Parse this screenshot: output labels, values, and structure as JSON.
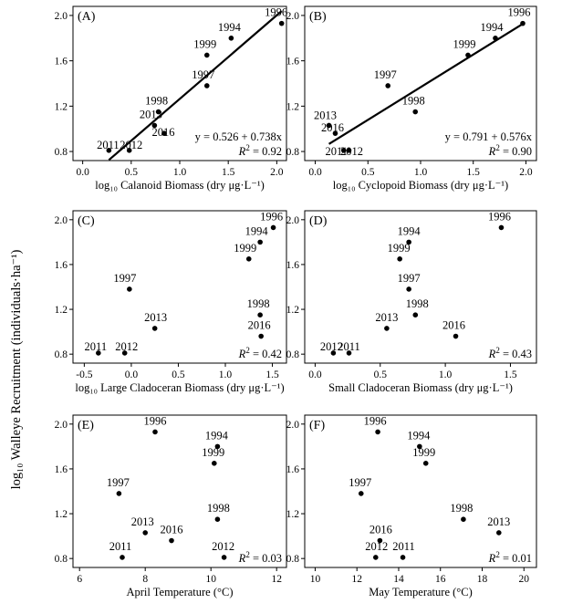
{
  "y_axis_label": "log₁₀ Walleye Recruitment (individuals·ha⁻¹)",
  "chart_data": [
    {
      "type": "scatter",
      "panel": "(A)",
      "xlabel": "log₁₀ Calanoid Biomass (dry μg·L⁻¹)",
      "ylabel": "log₁₀ Walleye Recruitment (individuals·ha⁻¹)",
      "xlim": [
        -0.1,
        2.1
      ],
      "ylim": [
        0.72,
        2.08
      ],
      "xticks": [
        0.0,
        0.5,
        1.0,
        1.5,
        2.0
      ],
      "xtick_labels": [
        "0.0",
        "0.5",
        "1.0",
        "1.5",
        "2.0"
      ],
      "yticks": [
        0.8,
        1.2,
        1.6,
        2.0
      ],
      "ytick_labels": [
        "0.8",
        "1.2",
        "1.6",
        "2.0"
      ],
      "points": [
        {
          "label": "1994",
          "x": 1.53,
          "y": 1.8
        },
        {
          "label": "1996",
          "x": 2.05,
          "y": 1.93
        },
        {
          "label": "1997",
          "x": 1.28,
          "y": 1.38
        },
        {
          "label": "1998",
          "x": 0.78,
          "y": 1.15
        },
        {
          "label": "1999",
          "x": 1.28,
          "y": 1.65
        },
        {
          "label": "2011",
          "x": 0.27,
          "y": 0.81
        },
        {
          "label": "2012",
          "x": 0.48,
          "y": 0.81
        },
        {
          "label": "2013",
          "x": 0.74,
          "y": 1.03
        },
        {
          "label": "2016",
          "x": 0.84,
          "y": 0.96
        }
      ],
      "fit": {
        "intercept": 0.526,
        "slope": 0.738,
        "x_range": [
          0.27,
          2.05
        ]
      },
      "equation": "y = 0.526 + 0.738x",
      "r2_label": "R",
      "r2_value": "2",
      "r2_text": " = 0.92"
    },
    {
      "type": "scatter",
      "panel": "(B)",
      "xlabel": "log₁₀ Cyclopoid Biomass (dry μg·L⁻¹)",
      "ylabel": "",
      "xlim": [
        -0.1,
        2.1
      ],
      "ylim": [
        0.72,
        2.08
      ],
      "xticks": [
        0.0,
        0.5,
        1.0,
        1.5,
        2.0
      ],
      "xtick_labels": [
        "0.0",
        "0.5",
        "1.0",
        "1.5",
        "2.0"
      ],
      "yticks": [
        0.8,
        1.2,
        1.6,
        2.0
      ],
      "ytick_labels": [
        "0.8",
        "1.2",
        "1.6",
        "2.0"
      ],
      "points": [
        {
          "label": "1994",
          "x": 1.71,
          "y": 1.8
        },
        {
          "label": "1996",
          "x": 1.97,
          "y": 1.93
        },
        {
          "label": "1997",
          "x": 0.69,
          "y": 1.38
        },
        {
          "label": "1998",
          "x": 0.95,
          "y": 1.15
        },
        {
          "label": "1999",
          "x": 1.45,
          "y": 1.65
        },
        {
          "label": "2011",
          "x": 0.27,
          "y": 0.81
        },
        {
          "label": "2012",
          "x": 0.32,
          "y": 0.81
        },
        {
          "label": "2013",
          "x": 0.13,
          "y": 1.03
        },
        {
          "label": "2016",
          "x": 0.19,
          "y": 0.96
        }
      ],
      "fit": {
        "intercept": 0.791,
        "slope": 0.576,
        "x_range": [
          0.13,
          1.97
        ]
      },
      "equation": "y = 0.791 + 0.576x",
      "r2_label": "R",
      "r2_value": "2",
      "r2_text": " = 0.90"
    },
    {
      "type": "scatter",
      "panel": "(C)",
      "xlabel": "log₁₀ Large Cladoceran Biomass (dry μg·L⁻¹)",
      "ylabel": "",
      "xlim": [
        -0.62,
        1.65
      ],
      "ylim": [
        0.72,
        2.08
      ],
      "xticks": [
        -0.5,
        0.0,
        0.5,
        1.0,
        1.5
      ],
      "xtick_labels": [
        "-0.5",
        "0.0",
        "0.5",
        "1.0",
        "1.5"
      ],
      "yticks": [
        0.8,
        1.2,
        1.6,
        2.0
      ],
      "ytick_labels": [
        "0.8",
        "1.2",
        "1.6",
        "2.0"
      ],
      "points": [
        {
          "label": "1994",
          "x": 1.37,
          "y": 1.8
        },
        {
          "label": "1996",
          "x": 1.51,
          "y": 1.93
        },
        {
          "label": "1997",
          "x": -0.02,
          "y": 1.38
        },
        {
          "label": "1998",
          "x": 1.37,
          "y": 1.15
        },
        {
          "label": "1999",
          "x": 1.25,
          "y": 1.65
        },
        {
          "label": "2011",
          "x": -0.35,
          "y": 0.81
        },
        {
          "label": "2012",
          "x": -0.07,
          "y": 0.81
        },
        {
          "label": "2013",
          "x": 0.25,
          "y": 1.03
        },
        {
          "label": "2016",
          "x": 1.38,
          "y": 0.96
        }
      ],
      "r2_label": "R",
      "r2_value": "2",
      "r2_text": " = 0.42"
    },
    {
      "type": "scatter",
      "panel": "(D)",
      "xlabel": "Small Cladoceran Biomass (dry μg·L⁻¹)",
      "ylabel": "",
      "xlim": [
        -0.08,
        1.7
      ],
      "ylim": [
        0.72,
        2.08
      ],
      "xticks": [
        0.0,
        0.5,
        1.0,
        1.5
      ],
      "xtick_labels": [
        "0.0",
        "0.5",
        "1.0",
        "1.5"
      ],
      "yticks": [
        0.8,
        1.2,
        1.6,
        2.0
      ],
      "ytick_labels": [
        "0.8",
        "1.2",
        "1.6",
        "2.0"
      ],
      "points": [
        {
          "label": "1994",
          "x": 0.72,
          "y": 1.8
        },
        {
          "label": "1996",
          "x": 1.43,
          "y": 1.93
        },
        {
          "label": "1997",
          "x": 0.72,
          "y": 1.38
        },
        {
          "label": "1998",
          "x": 0.77,
          "y": 1.15
        },
        {
          "label": "1999",
          "x": 0.65,
          "y": 1.65
        },
        {
          "label": "2011",
          "x": 0.26,
          "y": 0.81
        },
        {
          "label": "2012",
          "x": 0.14,
          "y": 0.81
        },
        {
          "label": "2013",
          "x": 0.55,
          "y": 1.03
        },
        {
          "label": "2016",
          "x": 1.08,
          "y": 0.96
        }
      ],
      "r2_label": "R",
      "r2_value": "2",
      "r2_text": " = 0.43"
    },
    {
      "type": "scatter",
      "panel": "(E)",
      "xlabel": "April Temperature (°C)",
      "ylabel": "",
      "xlim": [
        5.8,
        12.3
      ],
      "ylim": [
        0.72,
        2.08
      ],
      "xticks": [
        6,
        8,
        10,
        12
      ],
      "xtick_labels": [
        "6",
        "8",
        "10",
        "12"
      ],
      "yticks": [
        0.8,
        1.2,
        1.6,
        2.0
      ],
      "ytick_labels": [
        "0.8",
        "1.2",
        "1.6",
        "2.0"
      ],
      "points": [
        {
          "label": "1994",
          "x": 10.2,
          "y": 1.8
        },
        {
          "label": "1996",
          "x": 8.3,
          "y": 1.93
        },
        {
          "label": "1997",
          "x": 7.2,
          "y": 1.38
        },
        {
          "label": "1998",
          "x": 10.2,
          "y": 1.15
        },
        {
          "label": "1999",
          "x": 10.1,
          "y": 1.65
        },
        {
          "label": "2011",
          "x": 7.3,
          "y": 0.81
        },
        {
          "label": "2012",
          "x": 10.4,
          "y": 0.81
        },
        {
          "label": "2013",
          "x": 8.0,
          "y": 1.03
        },
        {
          "label": "2016",
          "x": 8.8,
          "y": 0.96
        }
      ],
      "r2_label": "R",
      "r2_value": "2",
      "r2_text": " = 0.03"
    },
    {
      "type": "scatter",
      "panel": "(F)",
      "xlabel": "May Temperature (°C)",
      "ylabel": "",
      "xlim": [
        9.5,
        20.6
      ],
      "ylim": [
        0.72,
        2.08
      ],
      "xticks": [
        10,
        12,
        14,
        16,
        18,
        20
      ],
      "xtick_labels": [
        "10",
        "12",
        "14",
        "16",
        "18",
        "20"
      ],
      "yticks": [
        0.8,
        1.2,
        1.6,
        2.0
      ],
      "ytick_labels": [
        "0.8",
        "1.2",
        "1.6",
        "2.0"
      ],
      "points": [
        {
          "label": "1994",
          "x": 15.0,
          "y": 1.8
        },
        {
          "label": "1996",
          "x": 13.0,
          "y": 1.93
        },
        {
          "label": "1997",
          "x": 12.2,
          "y": 1.38
        },
        {
          "label": "1998",
          "x": 17.1,
          "y": 1.15
        },
        {
          "label": "1999",
          "x": 15.3,
          "y": 1.65
        },
        {
          "label": "2011",
          "x": 14.2,
          "y": 0.81
        },
        {
          "label": "2012",
          "x": 12.9,
          "y": 0.81
        },
        {
          "label": "2013",
          "x": 18.8,
          "y": 1.03
        },
        {
          "label": "2016",
          "x": 13.1,
          "y": 0.96
        }
      ],
      "r2_label": "R",
      "r2_value": "2",
      "r2_text": " = 0.01"
    }
  ]
}
